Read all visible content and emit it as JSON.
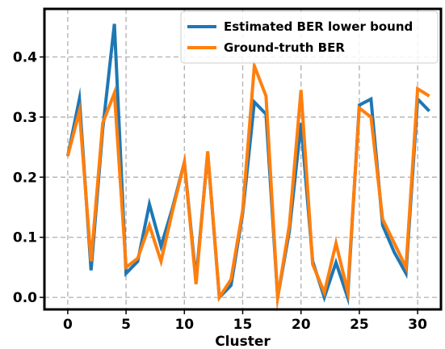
{
  "chart_data": {
    "type": "line",
    "title": "",
    "xlabel": "Cluster",
    "ylabel": "",
    "xlim": [
      -2,
      32
    ],
    "ylim": [
      -0.02,
      0.48
    ],
    "xticks": [
      0,
      5,
      10,
      15,
      20,
      25,
      30
    ],
    "yticks": [
      0.0,
      0.1,
      0.2,
      0.3,
      0.4
    ],
    "xtick_labels": [
      "0",
      "5",
      "10",
      "15",
      "20",
      "25",
      "30"
    ],
    "ytick_labels": [
      "0.0",
      "0.1",
      "0.2",
      "0.3",
      "0.4"
    ],
    "grid": true,
    "legend_position": "top-right",
    "x": [
      0,
      1,
      2,
      3,
      4,
      5,
      6,
      7,
      8,
      9,
      10,
      11,
      12,
      13,
      14,
      15,
      16,
      17,
      18,
      19,
      20,
      21,
      22,
      23,
      24,
      25,
      26,
      27,
      28,
      29,
      30,
      31
    ],
    "series": [
      {
        "name": "Estimated BER lower bound",
        "color": "#1f77b4",
        "values": [
          0.235,
          0.33,
          0.045,
          0.28,
          0.455,
          0.04,
          0.06,
          0.155,
          0.085,
          0.15,
          0.225,
          0.03,
          0.24,
          0.0,
          0.02,
          0.14,
          0.325,
          0.305,
          0.0,
          0.11,
          0.29,
          0.06,
          0.0,
          0.058,
          0.0,
          0.32,
          0.33,
          0.12,
          0.075,
          0.04,
          0.33,
          0.31
        ]
      },
      {
        "name": "Ground-truth BER",
        "color": "#ff7f0e",
        "values": [
          0.235,
          0.31,
          0.06,
          0.29,
          0.34,
          0.05,
          0.065,
          0.12,
          0.06,
          0.145,
          0.225,
          0.022,
          0.243,
          0.0,
          0.03,
          0.145,
          0.385,
          0.335,
          0.0,
          0.12,
          0.345,
          0.055,
          0.008,
          0.09,
          0.01,
          0.315,
          0.3,
          0.13,
          0.09,
          0.05,
          0.347,
          0.335
        ]
      }
    ]
  }
}
